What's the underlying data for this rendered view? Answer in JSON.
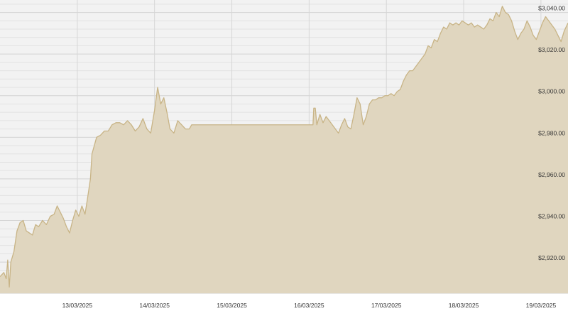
{
  "chart_data": {
    "type": "area",
    "title": "",
    "xlabel": "",
    "ylabel": "",
    "y_axis_position": "right",
    "y_ticks": [
      2920,
      2940,
      2960,
      2980,
      3000,
      3020,
      3040
    ],
    "y_tick_labels": [
      "$2,920.00",
      "$2,940.00",
      "$2,960.00",
      "$2,980.00",
      "$3,000.00",
      "$3,020.00",
      "$3,040.00"
    ],
    "ylim": [
      2905,
      3046
    ],
    "x_tick_labels": [
      "13/03/2025",
      "14/03/2025",
      "15/03/2025",
      "16/03/2025",
      "17/03/2025",
      "18/03/2025",
      "19/03/2025"
    ],
    "xlim": [
      0,
      7.35
    ],
    "grid": true,
    "colors": {
      "fill": "#e0d6bf",
      "line": "#c8b486",
      "grid": "#d6d6d6",
      "background": "#f2f2f2"
    },
    "series": [
      {
        "points": [
          [
            0.0,
            2913
          ],
          [
            0.05,
            2915
          ],
          [
            0.08,
            2912
          ],
          [
            0.1,
            2921
          ],
          [
            0.12,
            2908
          ],
          [
            0.14,
            2920
          ],
          [
            0.18,
            2925
          ],
          [
            0.22,
            2935
          ],
          [
            0.26,
            2939
          ],
          [
            0.3,
            2940
          ],
          [
            0.34,
            2935
          ],
          [
            0.38,
            2934
          ],
          [
            0.42,
            2933
          ],
          [
            0.46,
            2938
          ],
          [
            0.5,
            2937
          ],
          [
            0.55,
            2940
          ],
          [
            0.6,
            2938
          ],
          [
            0.65,
            2942
          ],
          [
            0.7,
            2943
          ],
          [
            0.74,
            2947
          ],
          [
            0.78,
            2944
          ],
          [
            0.82,
            2941
          ],
          [
            0.86,
            2937
          ],
          [
            0.9,
            2934
          ],
          [
            0.94,
            2940
          ],
          [
            0.98,
            2945
          ],
          [
            1.02,
            2942
          ],
          [
            1.06,
            2947
          ],
          [
            1.1,
            2943
          ],
          [
            1.13,
            2950
          ],
          [
            1.15,
            2955
          ],
          [
            1.17,
            2960
          ],
          [
            1.19,
            2972
          ],
          [
            1.22,
            2976
          ],
          [
            1.25,
            2980
          ],
          [
            1.3,
            2981
          ],
          [
            1.35,
            2983
          ],
          [
            1.4,
            2983
          ],
          [
            1.45,
            2986
          ],
          [
            1.5,
            2987
          ],
          [
            1.55,
            2987
          ],
          [
            1.6,
            2986
          ],
          [
            1.65,
            2988
          ],
          [
            1.7,
            2986
          ],
          [
            1.75,
            2983
          ],
          [
            1.8,
            2985
          ],
          [
            1.85,
            2989
          ],
          [
            1.9,
            2984
          ],
          [
            1.95,
            2982
          ],
          [
            2.0,
            2993
          ],
          [
            2.04,
            3004
          ],
          [
            2.08,
            2996
          ],
          [
            2.12,
            2999
          ],
          [
            2.16,
            2992
          ],
          [
            2.2,
            2984
          ],
          [
            2.25,
            2982
          ],
          [
            2.3,
            2988
          ],
          [
            2.35,
            2986
          ],
          [
            2.4,
            2984
          ],
          [
            2.45,
            2984
          ],
          [
            2.48,
            2986
          ],
          [
            2.6,
            2986
          ],
          [
            3.0,
            2986
          ],
          [
            3.5,
            2986
          ],
          [
            4.0,
            2986
          ],
          [
            4.05,
            2986
          ],
          [
            4.06,
            2994
          ],
          [
            4.08,
            2994
          ],
          [
            4.1,
            2986
          ],
          [
            4.14,
            2991
          ],
          [
            4.18,
            2987
          ],
          [
            4.22,
            2990
          ],
          [
            4.26,
            2988
          ],
          [
            4.3,
            2986
          ],
          [
            4.34,
            2984
          ],
          [
            4.38,
            2982
          ],
          [
            4.42,
            2986
          ],
          [
            4.46,
            2989
          ],
          [
            4.5,
            2985
          ],
          [
            4.54,
            2984
          ],
          [
            4.58,
            2991
          ],
          [
            4.62,
            2999
          ],
          [
            4.66,
            2996
          ],
          [
            4.7,
            2986
          ],
          [
            4.74,
            2990
          ],
          [
            4.78,
            2996
          ],
          [
            4.82,
            2998
          ],
          [
            4.86,
            2998
          ],
          [
            4.9,
            2999
          ],
          [
            4.94,
            2999
          ],
          [
            4.98,
            3000
          ],
          [
            5.02,
            3000
          ],
          [
            5.06,
            3001
          ],
          [
            5.1,
            3000
          ],
          [
            5.14,
            3002
          ],
          [
            5.18,
            3003
          ],
          [
            5.22,
            3007
          ],
          [
            5.26,
            3010
          ],
          [
            5.3,
            3012
          ],
          [
            5.34,
            3012
          ],
          [
            5.38,
            3014
          ],
          [
            5.42,
            3016
          ],
          [
            5.46,
            3018
          ],
          [
            5.5,
            3020
          ],
          [
            5.54,
            3024
          ],
          [
            5.58,
            3023
          ],
          [
            5.62,
            3027
          ],
          [
            5.66,
            3026
          ],
          [
            5.7,
            3030
          ],
          [
            5.74,
            3033
          ],
          [
            5.78,
            3032
          ],
          [
            5.82,
            3035
          ],
          [
            5.86,
            3034
          ],
          [
            5.9,
            3035
          ],
          [
            5.94,
            3034
          ],
          [
            5.98,
            3036
          ],
          [
            6.02,
            3035
          ],
          [
            6.06,
            3034
          ],
          [
            6.1,
            3035
          ],
          [
            6.14,
            3033
          ],
          [
            6.18,
            3034
          ],
          [
            6.22,
            3033
          ],
          [
            6.26,
            3032
          ],
          [
            6.3,
            3034
          ],
          [
            6.34,
            3037
          ],
          [
            6.38,
            3036
          ],
          [
            6.42,
            3040
          ],
          [
            6.46,
            3038
          ],
          [
            6.5,
            3043
          ],
          [
            6.54,
            3040
          ],
          [
            6.58,
            3039
          ],
          [
            6.62,
            3036
          ],
          [
            6.66,
            3031
          ],
          [
            6.7,
            3027
          ],
          [
            6.74,
            3030
          ],
          [
            6.78,
            3032
          ],
          [
            6.82,
            3036
          ],
          [
            6.86,
            3033
          ],
          [
            6.9,
            3029
          ],
          [
            6.94,
            3027
          ],
          [
            6.98,
            3031
          ],
          [
            7.02,
            3035
          ],
          [
            7.06,
            3038
          ],
          [
            7.1,
            3036
          ],
          [
            7.14,
            3034
          ],
          [
            7.18,
            3032
          ],
          [
            7.22,
            3029
          ],
          [
            7.26,
            3026
          ],
          [
            7.3,
            3031
          ],
          [
            7.35,
            3035
          ]
        ]
      }
    ]
  }
}
